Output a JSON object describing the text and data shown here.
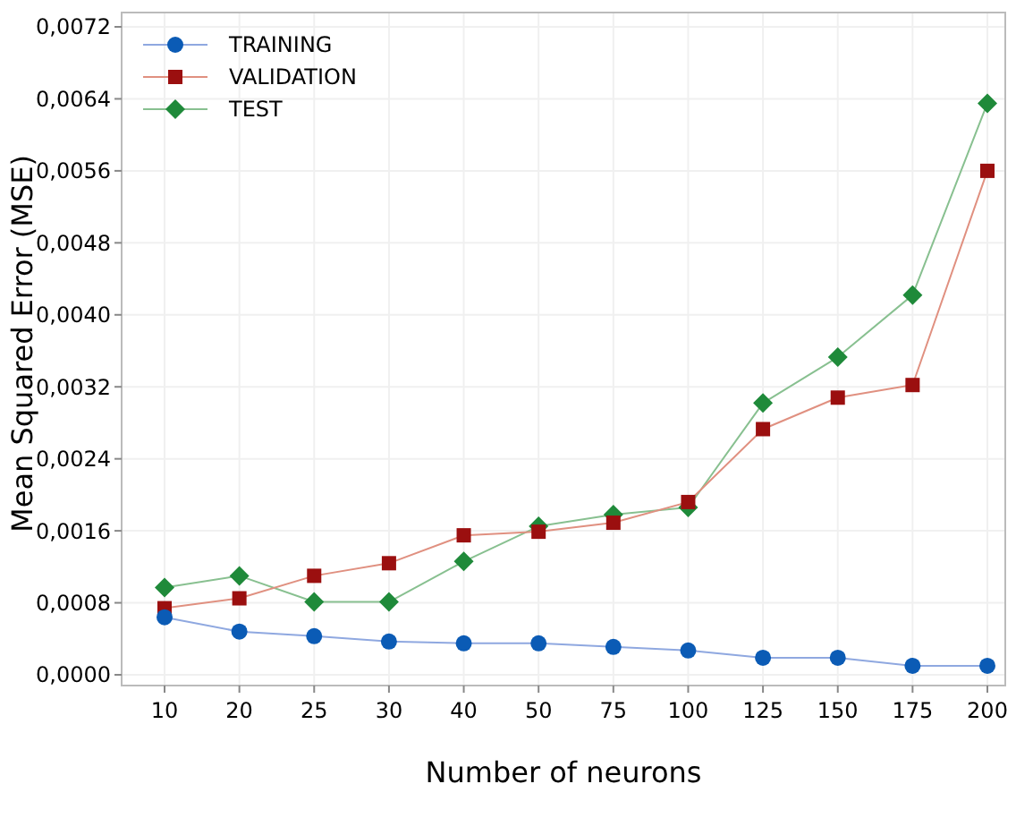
{
  "chart_data": {
    "type": "line",
    "xlabel": "Number of neurons",
    "ylabel": "Mean Squared Error (MSE)",
    "categories": [
      "10",
      "20",
      "25",
      "30",
      "40",
      "50",
      "75",
      "100",
      "125",
      "150",
      "175",
      "200"
    ],
    "series": [
      {
        "name": "TRAINING",
        "color": "#0b5bb5",
        "marker": "circle",
        "values": [
          0.00064,
          0.00048,
          0.00043,
          0.00037,
          0.00035,
          0.00035,
          0.00031,
          0.00027,
          0.00019,
          0.00019,
          0.0001,
          0.0001
        ]
      },
      {
        "name": "VALIDATION",
        "color": "#9b0f0f",
        "marker": "square",
        "values": [
          0.00074,
          0.00085,
          0.0011,
          0.00124,
          0.00155,
          0.00159,
          0.00169,
          0.00192,
          0.00273,
          0.00308,
          0.00322,
          0.0056
        ]
      },
      {
        "name": "TEST",
        "color": "#1f8a3a",
        "marker": "diamond",
        "values": [
          0.00097,
          0.0011,
          0.00081,
          0.00081,
          0.00126,
          0.00165,
          0.00178,
          0.00186,
          0.00302,
          0.00353,
          0.00422,
          0.00635
        ]
      }
    ],
    "ylim": [
      0,
      0.0072
    ],
    "yticks": [
      {
        "value": 0,
        "label": "0,0000"
      },
      {
        "value": 0.0008,
        "label": "0,0008"
      },
      {
        "value": 0.0016,
        "label": "0,0016"
      },
      {
        "value": 0.0024,
        "label": "0,0024"
      },
      {
        "value": 0.0032,
        "label": "0,0032"
      },
      {
        "value": 0.004,
        "label": "0,0040"
      },
      {
        "value": 0.0048,
        "label": "0,0048"
      },
      {
        "value": 0.0056,
        "label": "0,0056"
      },
      {
        "value": 0.0064,
        "label": "0,0064"
      },
      {
        "value": 0.0072,
        "label": "0,0072"
      }
    ],
    "grid": true,
    "legend": "top left"
  }
}
